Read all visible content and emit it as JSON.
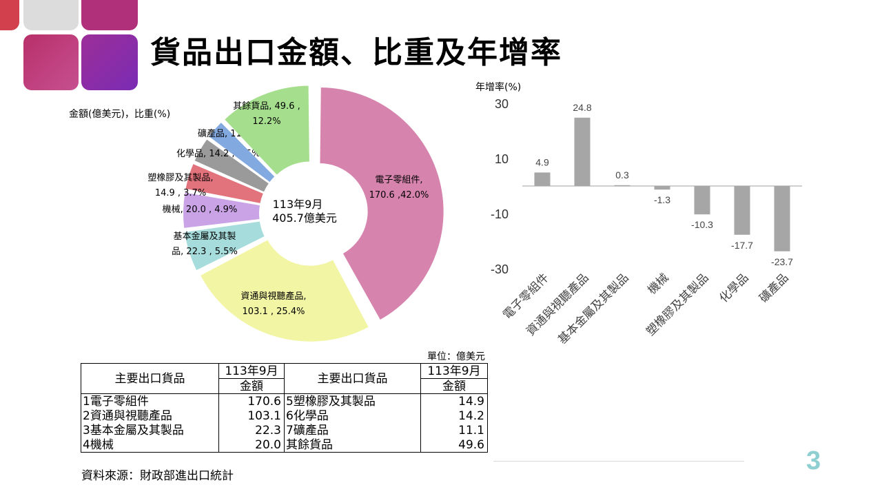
{
  "title": "貨品出口金額、比重及年增率",
  "page_number": "3",
  "colors": {
    "bar": "#a6a6a6",
    "page_number": "#8fcfd1"
  },
  "chart_data": [
    {
      "type": "pie",
      "subtype": "donut",
      "legend_title": "金額(億美元)，比重(%)",
      "center_label_line1": "113年9月",
      "center_label_line2": "405.7億美元",
      "slices": [
        {
          "name": "電子零組件",
          "value": 170.6,
          "share": 42.0,
          "color": "#d684ae",
          "label_lines": [
            "電子零組件,",
            "170.6 ,42.0%"
          ]
        },
        {
          "name": "資通與視聽產品",
          "value": 103.1,
          "share": 25.4,
          "color": "#f2f5a3",
          "label_lines": [
            "資通與視聽產品,",
            "103.1 , 25.4%"
          ]
        },
        {
          "name": "基本金屬及其製品",
          "value": 22.3,
          "share": 5.5,
          "color": "#a7dcdc",
          "label_lines": [
            "基本金屬及其製",
            "品, 22.3 , 5.5%"
          ]
        },
        {
          "name": "機械",
          "value": 20.0,
          "share": 4.9,
          "color": "#c9a3e6",
          "label_lines": [
            "機械, 20.0 , 4.9%"
          ]
        },
        {
          "name": "塑橡膠及其製品",
          "value": 14.9,
          "share": 3.7,
          "color": "#e2737c",
          "label_lines": [
            "塑橡膠及其製品,",
            "14.9 , 3.7%"
          ]
        },
        {
          "name": "化學品",
          "value": 14.2,
          "share": 3.5,
          "color": "#9a9a9a",
          "label_lines": [
            "化學品, 14.2 , 3.5%"
          ]
        },
        {
          "name": "礦產品",
          "value": 11.1,
          "share": 2.7,
          "color": "#82a9e0",
          "label_lines": [
            "礦產品, 11.1 , 2.7%"
          ]
        },
        {
          "name": "其餘貨品",
          "value": 49.6,
          "share": 12.2,
          "color": "#a5df8e",
          "label_lines": [
            "其餘貨品, 49.6 ,",
            "12.2%"
          ]
        }
      ]
    },
    {
      "type": "bar",
      "ylabel": "年增率(%)",
      "ylim": [
        -30,
        30
      ],
      "yticks": [
        "30",
        "10",
        "-10",
        "-30"
      ],
      "categories": [
        "電子零組件",
        "資通與視聽產品",
        "基本金屬及其製品",
        "機械",
        "塑橡膠及其製品",
        "化學品",
        "礦產品"
      ],
      "values": [
        4.9,
        24.8,
        0.3,
        -1.3,
        -10.3,
        -17.7,
        -23.7
      ],
      "value_labels": [
        "4.9",
        "24.8",
        "0.3",
        "-1.3",
        "-10.3",
        "-17.7",
        "-23.7"
      ],
      "grid": false
    }
  ],
  "table": {
    "unit": "單位：億美元",
    "col_header_item": "主要出口貨品",
    "col_header_period": "113年9月",
    "col_header_amount": "金額",
    "rows": [
      {
        "left_item": "1電子零組件",
        "left_value": "170.6",
        "right_item": "5塑橡膠及其製品",
        "right_value": "14.9"
      },
      {
        "left_item": "2資通與視聽產品",
        "left_value": "103.1",
        "right_item": "6化學品",
        "right_value": "14.2"
      },
      {
        "left_item": "3基本金屬及其製品",
        "left_value": "22.3",
        "right_item": "7礦產品",
        "right_value": "11.1"
      },
      {
        "left_item": "4機械",
        "left_value": "20.0",
        "right_item": "其餘貨品",
        "right_value": "49.6"
      }
    ],
    "source": "資料來源：財政部進出口統計"
  }
}
